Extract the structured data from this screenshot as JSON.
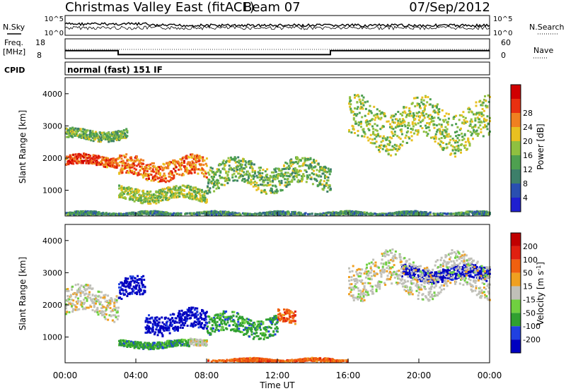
{
  "header": {
    "station": "Christmas Valley East (fitACF)",
    "beam": "Beam 07",
    "date": "07/Sep/2012"
  },
  "strip_labels": {
    "nsky": "N.Sky",
    "nsearch": "N.Search",
    "freq_line1": "Freq.",
    "freq_line2": "[MHz]",
    "nave": "Nave",
    "cpid": "CPID",
    "mode": "normal (fast) 151 IF"
  },
  "axes": {
    "xlabel": "Time UT",
    "xticks": [
      "00:00",
      "04:00",
      "08:00",
      "12:00",
      "16:00",
      "20:00",
      "00:00"
    ],
    "ylabel_range": "Slant Range [km]",
    "yticks": [
      "1000",
      "2000",
      "3000",
      "4000"
    ],
    "noise_ticks": [
      "10^5",
      "10^0"
    ],
    "freq_ticks_left": [
      "18",
      "8"
    ],
    "nave_ticks_right": [
      "60",
      "0"
    ]
  },
  "colorbars": {
    "power": {
      "label": "Power [dB]",
      "ticks": [
        "4",
        "8",
        "12",
        "16",
        "20",
        "24",
        "28"
      ],
      "colors": [
        "#1f1fd0",
        "#2a4fb0",
        "#3d7f6a",
        "#4ea050",
        "#8fc040",
        "#e8c020",
        "#f08020",
        "#e83010",
        "#d00000"
      ]
    },
    "velocity": {
      "label": "Velocity [m s",
      "label_exp": "-1",
      "label_end": "]",
      "ticks": [
        "200",
        "100",
        "50",
        "15",
        "-15",
        "-50",
        "-100",
        "-200"
      ],
      "colors": [
        "#0000c0",
        "#2040e0",
        "#30a030",
        "#70d040",
        "#c0c0b8",
        "#f0a020",
        "#f06010",
        "#e02010",
        "#c00000"
      ]
    }
  },
  "chart_data": {
    "type": "heatmap",
    "title": "Christmas Valley East (fitACF) Beam 07 07/Sep/2012",
    "xlabel": "Time UT",
    "xlim_hours": [
      0,
      24
    ],
    "panels": [
      {
        "name": "Power [dB]",
        "ylabel": "Slant Range [km]",
        "ylim_km": [
          200,
          4500
        ],
        "features": [
          {
            "t": [
              0.0,
              3.0
            ],
            "range": [
              1800,
              2100
            ],
            "value_db": 24
          },
          {
            "t": [
              0.0,
              3.5
            ],
            "range": [
              2600,
              2900
            ],
            "value_db": 12
          },
          {
            "t": [
              3.0,
              8.0
            ],
            "range": [
              1400,
              2000
            ],
            "value_db": 22
          },
          {
            "t": [
              3.0,
              8.0
            ],
            "range": [
              700,
              1100
            ],
            "value_db": 14
          },
          {
            "t": [
              8.0,
              15.0
            ],
            "range": [
              1100,
              1900
            ],
            "value_db": 12
          },
          {
            "t": [
              16.0,
              24.0
            ],
            "range": [
              2400,
              3700
            ],
            "value_db": 14
          },
          {
            "t": [
              0.0,
              24.0
            ],
            "range": [
              200,
              350
            ],
            "value_db": 8
          }
        ]
      },
      {
        "name": "Velocity [m s-1]",
        "ylabel": "Slant Range [km]",
        "ylim_km": [
          200,
          4500
        ],
        "features": [
          {
            "t": [
              0.0,
              3.0
            ],
            "range": [
              1700,
              2500
            ],
            "value_ms": 0
          },
          {
            "t": [
              3.0,
              4.5
            ],
            "range": [
              2200,
              2800
            ],
            "value_ms": 200
          },
          {
            "t": [
              4.5,
              8.0
            ],
            "range": [
              1200,
              1800
            ],
            "value_ms": 200
          },
          {
            "t": [
              3.0,
              7.0
            ],
            "range": [
              700,
              900
            ],
            "value_ms": 60
          },
          {
            "t": [
              7.0,
              8.0
            ],
            "range": [
              800,
              1000
            ],
            "value_ms": 0
          },
          {
            "t": [
              8.0,
              12.0
            ],
            "range": [
              1100,
              1700
            ],
            "value_ms": 60
          },
          {
            "t": [
              12.0,
              13.0
            ],
            "range": [
              1400,
              1800
            ],
            "value_ms": -60
          },
          {
            "t": [
              19.0,
              24.0
            ],
            "range": [
              2800,
              3200
            ],
            "value_ms": 200
          },
          {
            "t": [
              16.0,
              24.0
            ],
            "range": [
              2400,
              3500
            ],
            "value_ms": 0
          },
          {
            "t": [
              8.0,
              16.0
            ],
            "range": [
              200,
              350
            ],
            "value_ms": -60
          }
        ]
      }
    ],
    "frequency_mhz": [
      {
        "t": [
          0.0,
          3.0
        ],
        "value": 12
      },
      {
        "t": [
          3.0,
          15.0
        ],
        "value": 10
      },
      {
        "t": [
          15.0,
          24.0
        ],
        "value": 12
      }
    ]
  }
}
